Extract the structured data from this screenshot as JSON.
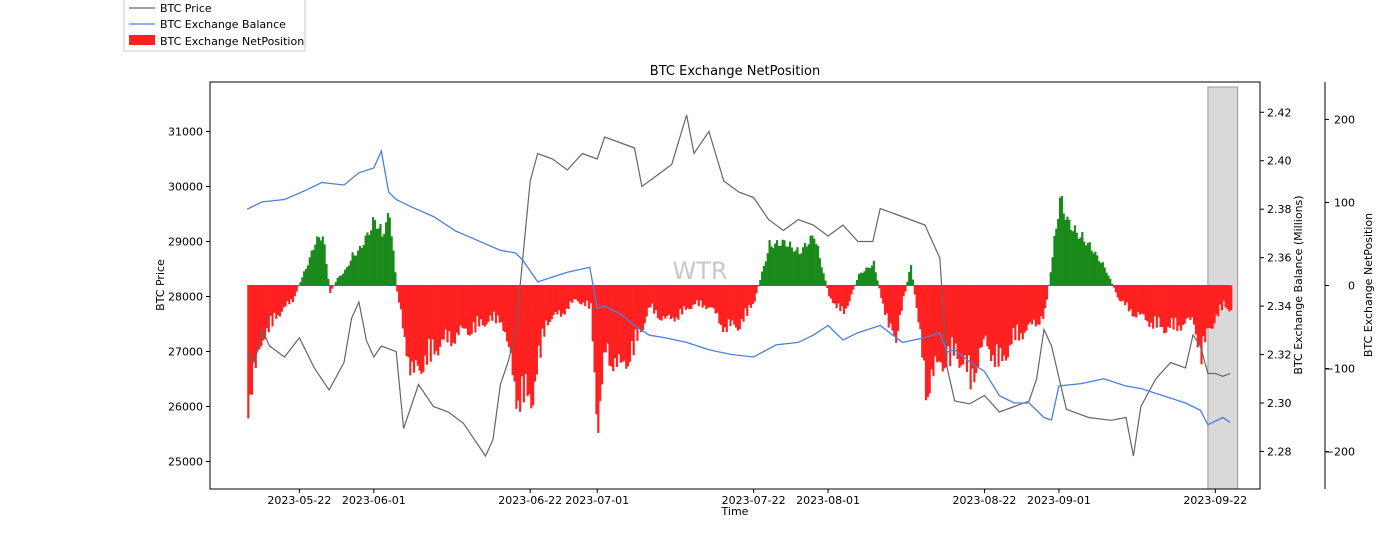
{
  "chart_data": {
    "type": "line",
    "title": "BTC Exchange NetPosition",
    "xlabel": "Time",
    "ylabel_left": "BTC Price",
    "ylabel_right1": "BTC Exchange Balance (Millions)",
    "ylabel_right2": "BTC Exchange NetPosition",
    "watermark": "WTR",
    "legend": {
      "placement": "top-left",
      "entries": [
        {
          "label": "BTC Price",
          "kind": "line",
          "color": "#666666"
        },
        {
          "label": "BTC Exchange Balance",
          "kind": "line",
          "color": "#4a80e0"
        },
        {
          "label": "BTC Exchange NetPosition",
          "kind": "patch",
          "color": "#ff2020"
        }
      ]
    },
    "xlim": [
      "2023-05-10",
      "2023-09-28"
    ],
    "x_ticks": [
      "2023-05-22",
      "2023-06-01",
      "2023-06-22",
      "2023-07-01",
      "2023-07-22",
      "2023-08-01",
      "2023-08-22",
      "2023-09-01",
      "2023-09-22"
    ],
    "left_axis": {
      "ylim": [
        24500,
        31900
      ],
      "ticks": [
        25000,
        26000,
        27000,
        28000,
        29000,
        30000,
        31000
      ]
    },
    "right_axis_1": {
      "ylim": [
        2.2645,
        2.4325
      ],
      "ticks": [
        "2.28",
        "2.30",
        "2.32",
        "2.34",
        "2.36",
        "2.38",
        "2.40",
        "2.42"
      ]
    },
    "right_axis_2": {
      "ylim": [
        -245,
        245
      ],
      "ticks": [
        -200,
        -100,
        0,
        100,
        200
      ]
    },
    "highlight_span": {
      "from": "2023-09-21",
      "to": "2023-09-25",
      "color": "#d9d9d9"
    },
    "series": [
      {
        "name": "BTC Price",
        "axis": "left",
        "color": "#666666",
        "x": [
          "2023-05-15",
          "2023-05-16",
          "2023-05-17",
          "2023-05-18",
          "2023-05-20",
          "2023-05-22",
          "2023-05-24",
          "2023-05-26",
          "2023-05-28",
          "2023-05-29",
          "2023-05-30",
          "2023-05-31",
          "2023-06-01",
          "2023-06-02",
          "2023-06-04",
          "2023-06-05",
          "2023-06-07",
          "2023-06-09",
          "2023-06-11",
          "2023-06-13",
          "2023-06-15",
          "2023-06-16",
          "2023-06-17",
          "2023-06-18",
          "2023-06-19",
          "2023-06-20",
          "2023-06-21",
          "2023-06-22",
          "2023-06-23",
          "2023-06-25",
          "2023-06-27",
          "2023-06-29",
          "2023-07-01",
          "2023-07-02",
          "2023-07-04",
          "2023-07-06",
          "2023-07-07",
          "2023-07-09",
          "2023-07-11",
          "2023-07-13",
          "2023-07-14",
          "2023-07-16",
          "2023-07-18",
          "2023-07-20",
          "2023-07-22",
          "2023-07-24",
          "2023-07-26",
          "2023-07-28",
          "2023-07-30",
          "2023-08-01",
          "2023-08-03",
          "2023-08-05",
          "2023-08-07",
          "2023-08-08",
          "2023-08-10",
          "2023-08-12",
          "2023-08-14",
          "2023-08-16",
          "2023-08-17",
          "2023-08-18",
          "2023-08-20",
          "2023-08-22",
          "2023-08-24",
          "2023-08-26",
          "2023-08-28",
          "2023-08-29",
          "2023-08-30",
          "2023-08-31",
          "2023-09-02",
          "2023-09-05",
          "2023-09-08",
          "2023-09-10",
          "2023-09-11",
          "2023-09-12",
          "2023-09-14",
          "2023-09-16",
          "2023-09-18",
          "2023-09-19",
          "2023-09-20",
          "2023-09-21",
          "2023-09-22",
          "2023-09-23",
          "2023-09-24"
        ],
        "values": [
          27000,
          26800,
          27400,
          27100,
          26900,
          27250,
          26700,
          26300,
          26800,
          27600,
          27900,
          27200,
          26900,
          27100,
          27000,
          25600,
          26400,
          26000,
          25900,
          25700,
          25300,
          25100,
          25400,
          26400,
          26800,
          27300,
          28700,
          30100,
          30600,
          30500,
          30300,
          30600,
          30500,
          30900,
          30800,
          30700,
          30000,
          30200,
          30400,
          31300,
          30600,
          31000,
          30100,
          29900,
          29800,
          29400,
          29200,
          29400,
          29300,
          29100,
          29300,
          29000,
          29000,
          29600,
          29500,
          29400,
          29300,
          28700,
          26700,
          26100,
          26050,
          26200,
          25900,
          26000,
          26100,
          26500,
          27400,
          27100,
          25950,
          25800,
          25750,
          25800,
          25100,
          26000,
          26500,
          26800,
          26700,
          27300,
          27100,
          26600,
          26600,
          26550,
          26600
        ]
      },
      {
        "name": "BTC Exchange Balance",
        "axis": "right_1",
        "unit": "Millions",
        "color": "#4a80e0",
        "x": [
          "2023-05-15",
          "2023-05-17",
          "2023-05-20",
          "2023-05-23",
          "2023-05-25",
          "2023-05-28",
          "2023-05-30",
          "2023-06-01",
          "2023-06-02",
          "2023-06-03",
          "2023-06-04",
          "2023-06-06",
          "2023-06-09",
          "2023-06-12",
          "2023-06-15",
          "2023-06-18",
          "2023-06-20",
          "2023-06-21",
          "2023-06-23",
          "2023-06-25",
          "2023-06-27",
          "2023-06-30",
          "2023-07-01",
          "2023-07-02",
          "2023-07-04",
          "2023-07-06",
          "2023-07-08",
          "2023-07-10",
          "2023-07-13",
          "2023-07-16",
          "2023-07-19",
          "2023-07-22",
          "2023-07-25",
          "2023-07-28",
          "2023-07-30",
          "2023-08-01",
          "2023-08-03",
          "2023-08-05",
          "2023-08-08",
          "2023-08-11",
          "2023-08-14",
          "2023-08-16",
          "2023-08-17",
          "2023-08-18",
          "2023-08-20",
          "2023-08-22",
          "2023-08-24",
          "2023-08-26",
          "2023-08-28",
          "2023-08-30",
          "2023-08-31",
          "2023-09-01",
          "2023-09-04",
          "2023-09-07",
          "2023-09-10",
          "2023-09-12",
          "2023-09-15",
          "2023-09-18",
          "2023-09-20",
          "2023-09-21",
          "2023-09-23",
          "2023-09-24"
        ],
        "values": [
          2.38,
          2.383,
          2.384,
          2.388,
          2.391,
          2.39,
          2.395,
          2.397,
          2.404,
          2.387,
          2.384,
          2.381,
          2.377,
          2.371,
          2.367,
          2.363,
          2.362,
          2.359,
          2.35,
          2.352,
          2.354,
          2.356,
          2.339,
          2.34,
          2.337,
          2.332,
          2.328,
          2.327,
          2.325,
          2.322,
          2.32,
          2.319,
          2.324,
          2.325,
          2.328,
          2.332,
          2.326,
          2.329,
          2.332,
          2.325,
          2.327,
          2.329,
          2.321,
          2.322,
          2.317,
          2.313,
          2.303,
          2.3,
          2.3,
          2.294,
          2.293,
          2.307,
          2.308,
          2.31,
          2.307,
          2.306,
          2.303,
          2.3,
          2.297,
          2.291,
          2.294,
          2.292
        ]
      },
      {
        "name": "BTC Exchange NetPosition",
        "axis": "right_2",
        "kind": "bar",
        "color_positive": "#1a8a1a",
        "color_negative": "#ff2020",
        "x": [
          "2023-05-15",
          "2023-05-16",
          "2023-05-17",
          "2023-05-19",
          "2023-05-21",
          "2023-05-23",
          "2023-05-24",
          "2023-05-25",
          "2023-05-26",
          "2023-05-27",
          "2023-05-28",
          "2023-05-29",
          "2023-05-30",
          "2023-05-31",
          "2023-06-01",
          "2023-06-02",
          "2023-06-03",
          "2023-06-04",
          "2023-06-06",
          "2023-06-08",
          "2023-06-10",
          "2023-06-12",
          "2023-06-14",
          "2023-06-16",
          "2023-06-18",
          "2023-06-20",
          "2023-06-22",
          "2023-06-24",
          "2023-06-26",
          "2023-06-28",
          "2023-06-30",
          "2023-07-01",
          "2023-07-02",
          "2023-07-04",
          "2023-07-06",
          "2023-07-08",
          "2023-07-10",
          "2023-07-12",
          "2023-07-14",
          "2023-07-16",
          "2023-07-18",
          "2023-07-20",
          "2023-07-22",
          "2023-07-24",
          "2023-07-26",
          "2023-07-28",
          "2023-07-30",
          "2023-08-01",
          "2023-08-03",
          "2023-08-05",
          "2023-08-07",
          "2023-08-09",
          "2023-08-10",
          "2023-08-12",
          "2023-08-14",
          "2023-08-16",
          "2023-08-18",
          "2023-08-20",
          "2023-08-22",
          "2023-08-24",
          "2023-08-26",
          "2023-08-28",
          "2023-08-30",
          "2023-09-01",
          "2023-09-02",
          "2023-09-03",
          "2023-09-05",
          "2023-09-07",
          "2023-09-09",
          "2023-09-11",
          "2023-09-13",
          "2023-09-15",
          "2023-09-17",
          "2023-09-19",
          "2023-09-20",
          "2023-09-21",
          "2023-09-22",
          "2023-09-23",
          "2023-09-24"
        ],
        "values": [
          -160,
          -120,
          -70,
          -40,
          -20,
          30,
          60,
          70,
          -10,
          10,
          20,
          40,
          50,
          70,
          90,
          70,
          100,
          -10,
          -130,
          -100,
          -80,
          -70,
          -60,
          -50,
          -45,
          -150,
          -160,
          -50,
          -40,
          -20,
          -30,
          -200,
          -90,
          -120,
          -80,
          -30,
          -50,
          -40,
          -25,
          -30,
          -60,
          -55,
          -20,
          55,
          60,
          45,
          70,
          -15,
          -40,
          15,
          30,
          -60,
          -70,
          30,
          -140,
          -110,
          -90,
          -130,
          -80,
          -110,
          -70,
          -60,
          -40,
          120,
          90,
          75,
          55,
          25,
          -20,
          -40,
          -50,
          -60,
          -55,
          -50,
          -100,
          -60,
          -45,
          -25,
          -35
        ]
      }
    ]
  }
}
